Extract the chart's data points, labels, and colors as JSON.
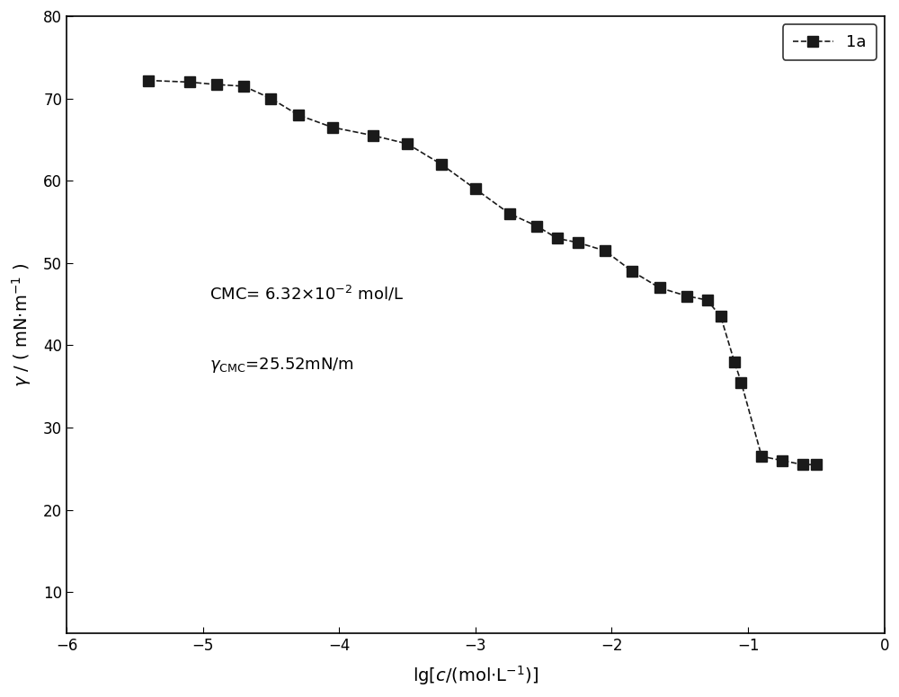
{
  "x": [
    -5.4,
    -5.1,
    -4.9,
    -4.7,
    -4.5,
    -4.3,
    -4.05,
    -3.75,
    -3.5,
    -3.25,
    -3.0,
    -2.75,
    -2.55,
    -2.4,
    -2.25,
    -2.05,
    -1.85,
    -1.65,
    -1.45,
    -1.3,
    -1.2,
    -1.1,
    -1.05,
    -0.9,
    -0.75,
    -0.6,
    -0.5
  ],
  "y": [
    72.2,
    72.0,
    71.7,
    71.5,
    70.0,
    68.0,
    66.5,
    65.5,
    64.5,
    62.0,
    59.0,
    56.0,
    54.5,
    53.0,
    52.5,
    51.5,
    49.0,
    47.0,
    46.0,
    45.5,
    43.5,
    38.0,
    35.5,
    26.5,
    26.0,
    25.5,
    25.5
  ],
  "xlim": [
    -6,
    0
  ],
  "ylim": [
    5,
    80
  ],
  "yticks": [
    10,
    20,
    30,
    40,
    50,
    60,
    70,
    80
  ],
  "xticks": [
    -6,
    -5,
    -4,
    -3,
    -2,
    -1,
    0
  ],
  "legend_label": "1a",
  "line_color": "#1a1a1a",
  "marker_size": 8,
  "figsize": [
    10.0,
    7.76
  ],
  "dpi": 100
}
